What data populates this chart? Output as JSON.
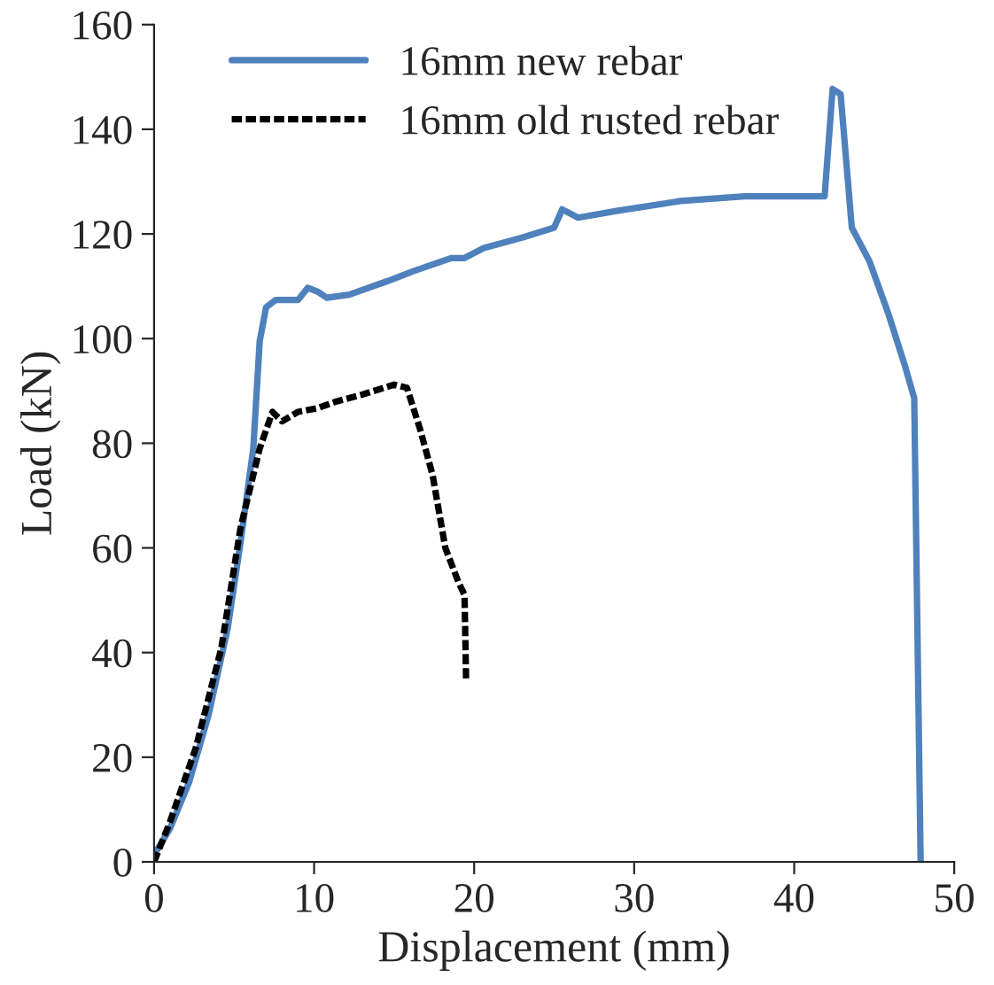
{
  "chart_data": {
    "type": "line",
    "xlabel": "Displacement (mm)",
    "ylabel": "Load (kN)",
    "xlim": [
      0,
      50
    ],
    "xticks": [
      0,
      10,
      20,
      30,
      40,
      50
    ],
    "ylim": [
      0,
      160
    ],
    "yticks": [
      0,
      20,
      40,
      60,
      80,
      100,
      120,
      140,
      160
    ],
    "grid": false,
    "legend": "top left",
    "marker": "none",
    "series": [
      {
        "name": "16mm new rebar",
        "color": "#4f81bd",
        "line_style": "solid",
        "x": [
          0,
          1.0,
          2.2,
          3.4,
          4.6,
          5.4,
          6.2,
          6.6,
          7.0,
          7.6,
          9.0,
          9.6,
          10.2,
          10.8,
          12.2,
          14.6,
          16.2,
          18.6,
          19.4,
          20.6,
          23.0,
          25.0,
          25.5,
          26.5,
          28.9,
          32.9,
          36.9,
          41.9,
          42.4,
          42.9,
          43.6,
          44.7,
          45.9,
          46.9,
          47.5,
          47.9
        ],
        "values": [
          1.3,
          6.4,
          15.3,
          28,
          44.6,
          61,
          79,
          99.5,
          106,
          107.4,
          107.4,
          109.7,
          109,
          107.8,
          108.4,
          111,
          112.9,
          115.4,
          115.4,
          117.3,
          119.3,
          121.2,
          124.7,
          123.1,
          124.4,
          126.3,
          127.2,
          127.2,
          147.7,
          146.7,
          121.2,
          114.8,
          104.6,
          95,
          88.6,
          0
        ]
      },
      {
        "name": "16mm old rusted rebar",
        "color": "#000000",
        "line_style": "dashed",
        "x": [
          0,
          1.0,
          2.6,
          4.2,
          5.4,
          6.6,
          7.4,
          8.0,
          9.0,
          10.2,
          11.4,
          13.0,
          15.0,
          15.8,
          16.6,
          17.4,
          18.2,
          19.0,
          19.4,
          19.5
        ],
        "values": [
          0,
          7.7,
          21.7,
          40.8,
          63.8,
          79,
          86,
          84.2,
          86,
          86.7,
          88,
          89.3,
          91.2,
          90.6,
          82.9,
          74,
          60,
          53.6,
          51,
          34.4
        ]
      }
    ]
  }
}
